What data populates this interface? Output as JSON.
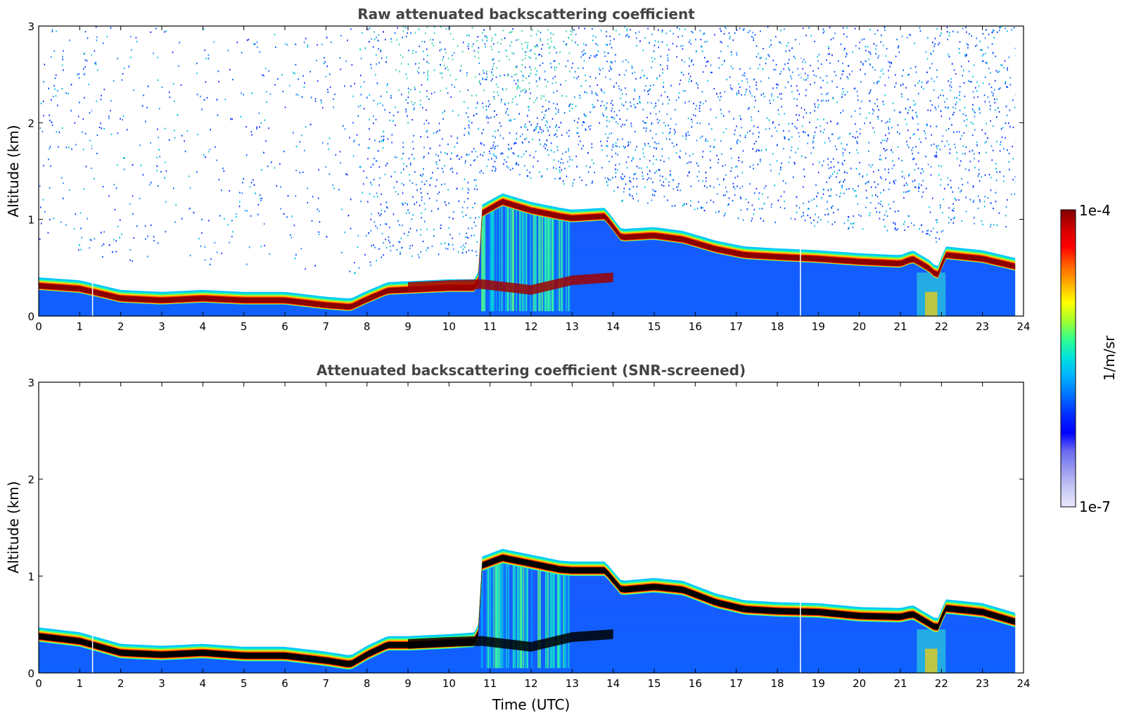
{
  "chart_data": [
    {
      "type": "heatmap",
      "id": "raw",
      "title": "Raw attenuated backscattering coefficient",
      "xlabel": "",
      "ylabel": "Altitude (km)",
      "xlim": [
        0,
        24
      ],
      "ylim": [
        0,
        3
      ],
      "x_ticks": [
        "0",
        "1",
        "2",
        "3",
        "4",
        "5",
        "6",
        "7",
        "8",
        "9",
        "10",
        "11",
        "12",
        "13",
        "14",
        "15",
        "16",
        "17",
        "18",
        "19",
        "20",
        "21",
        "22",
        "23",
        "24"
      ],
      "y_ticks": [
        "0",
        "1",
        "2",
        "3"
      ],
      "layer_top_km": [
        [
          0,
          0.4
        ],
        [
          1,
          0.37
        ],
        [
          2,
          0.27
        ],
        [
          3,
          0.25
        ],
        [
          4,
          0.27
        ],
        [
          5,
          0.25
        ],
        [
          6,
          0.25
        ],
        [
          7,
          0.2
        ],
        [
          7.6,
          0.18
        ],
        [
          8,
          0.26
        ],
        [
          8.5,
          0.35
        ],
        [
          9,
          0.36
        ],
        [
          10,
          0.38
        ],
        [
          10.7,
          0.38
        ],
        [
          10.8,
          1.15
        ],
        [
          11.3,
          1.27
        ],
        [
          12,
          1.18
        ],
        [
          12.7,
          1.12
        ],
        [
          13,
          1.1
        ],
        [
          13.8,
          1.12
        ],
        [
          14.2,
          0.9
        ],
        [
          15,
          0.92
        ],
        [
          15.7,
          0.88
        ],
        [
          16.5,
          0.78
        ],
        [
          17.2,
          0.72
        ],
        [
          18,
          0.7
        ],
        [
          19,
          0.68
        ],
        [
          20,
          0.65
        ],
        [
          21,
          0.63
        ],
        [
          21.3,
          0.68
        ],
        [
          21.7,
          0.58
        ],
        [
          21.9,
          0.5
        ],
        [
          22.1,
          0.72
        ],
        [
          23,
          0.68
        ],
        [
          23.8,
          0.6
        ]
      ],
      "layer_thickness_km": 0.13
    },
    {
      "type": "heatmap",
      "id": "screened",
      "title": "Attenuated backscattering coefficient (SNR-screened)",
      "xlabel": "Time (UTC)",
      "ylabel": "Altitude (km)",
      "xlim": [
        0,
        24
      ],
      "ylim": [
        0,
        3
      ],
      "x_ticks": [
        "0",
        "1",
        "2",
        "3",
        "4",
        "5",
        "6",
        "7",
        "8",
        "9",
        "10",
        "11",
        "12",
        "13",
        "14",
        "15",
        "16",
        "17",
        "18",
        "19",
        "20",
        "21",
        "22",
        "23",
        "24"
      ],
      "y_ticks": [
        "0",
        "1",
        "2",
        "3"
      ],
      "layer_top_km": [
        [
          0,
          0.47
        ],
        [
          1,
          0.42
        ],
        [
          2,
          0.3
        ],
        [
          3,
          0.28
        ],
        [
          4,
          0.3
        ],
        [
          5,
          0.27
        ],
        [
          6,
          0.27
        ],
        [
          7,
          0.22
        ],
        [
          7.6,
          0.18
        ],
        [
          8,
          0.28
        ],
        [
          8.5,
          0.38
        ],
        [
          9,
          0.38
        ],
        [
          10,
          0.4
        ],
        [
          10.7,
          0.42
        ],
        [
          10.8,
          1.2
        ],
        [
          11.3,
          1.28
        ],
        [
          12,
          1.22
        ],
        [
          12.7,
          1.16
        ],
        [
          13,
          1.15
        ],
        [
          13.8,
          1.15
        ],
        [
          14.2,
          0.95
        ],
        [
          15,
          0.98
        ],
        [
          15.7,
          0.95
        ],
        [
          16.5,
          0.82
        ],
        [
          17.2,
          0.75
        ],
        [
          18,
          0.73
        ],
        [
          19,
          0.72
        ],
        [
          20,
          0.68
        ],
        [
          21,
          0.67
        ],
        [
          21.3,
          0.7
        ],
        [
          21.7,
          0.6
        ],
        [
          21.9,
          0.55
        ],
        [
          22.1,
          0.76
        ],
        [
          23,
          0.72
        ],
        [
          23.8,
          0.62
        ]
      ],
      "layer_thickness_km": 0.15
    }
  ],
  "colorbar": {
    "max_label": "1e-4",
    "min_label": "1e-7",
    "unit_label": "1/m/sr",
    "colors": [
      "#e8e8fa",
      "#c8c8f5",
      "#9a9af0",
      "#6a6af0",
      "#0000ff",
      "#0030ff",
      "#0070ff",
      "#00b0ff",
      "#00e0e0",
      "#30ff90",
      "#a0ff30",
      "#ffff00",
      "#ffb000",
      "#ff6000",
      "#ff0000",
      "#d00000",
      "#7f0000"
    ]
  }
}
